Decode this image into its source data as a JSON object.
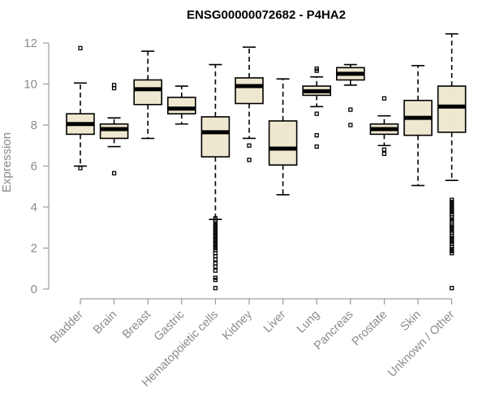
{
  "chart_data": {
    "type": "boxplot",
    "title": "ENSG00000072682 - P4HA2",
    "ylabel": "Expression",
    "xlabel": "",
    "ylim": [
      0,
      12.5
    ],
    "yticks": [
      0,
      2,
      4,
      6,
      8,
      10,
      12
    ],
    "categories": [
      "Bladder",
      "Brain",
      "Breast",
      "Gastric",
      "Hematopoietic cells",
      "Kidney",
      "Liver",
      "Lung",
      "Pancreas",
      "Prostate",
      "Skin",
      "Unknown / Other"
    ],
    "colors": {
      "box_fill": "#efe8d0",
      "stroke": "#000000",
      "axis": "#8a8a8a"
    },
    "boxes": [
      {
        "name": "Bladder",
        "min": 6.0,
        "q1": 7.55,
        "median": 8.05,
        "q3": 8.55,
        "max": 10.05,
        "outliers": [
          11.75,
          5.9
        ]
      },
      {
        "name": "Brain",
        "min": 6.95,
        "q1": 7.35,
        "median": 7.8,
        "q3": 8.05,
        "max": 8.35,
        "outliers": [
          9.95,
          9.8,
          5.65
        ]
      },
      {
        "name": "Breast",
        "min": 7.35,
        "q1": 9.0,
        "median": 9.75,
        "q3": 10.2,
        "max": 11.6,
        "outliers": []
      },
      {
        "name": "Gastric",
        "min": 8.05,
        "q1": 8.55,
        "median": 8.8,
        "q3": 9.35,
        "max": 9.9,
        "outliers": []
      },
      {
        "name": "Hematopoietic cells",
        "min": 3.4,
        "q1": 6.45,
        "median": 7.65,
        "q3": 8.4,
        "max": 10.95,
        "outliers": [
          3.45,
          3.3,
          3.2,
          3.1,
          3.0,
          2.9,
          2.8,
          2.7,
          2.6,
          2.5,
          2.4,
          2.3,
          2.2,
          2.1,
          2.0,
          1.9,
          1.75,
          1.6,
          1.45,
          1.25,
          1.1,
          0.9,
          0.55,
          0.45,
          0.05
        ]
      },
      {
        "name": "Kidney",
        "min": 7.35,
        "q1": 9.05,
        "median": 9.9,
        "q3": 10.3,
        "max": 11.8,
        "outliers": [
          7.0,
          6.3
        ]
      },
      {
        "name": "Liver",
        "min": 4.6,
        "q1": 6.05,
        "median": 6.85,
        "q3": 8.2,
        "max": 10.25,
        "outliers": []
      },
      {
        "name": "Lung",
        "min": 8.9,
        "q1": 9.45,
        "median": 9.65,
        "q3": 9.9,
        "max": 10.35,
        "outliers": [
          10.75,
          10.65,
          8.55,
          7.5,
          6.95
        ]
      },
      {
        "name": "Pancreas",
        "min": 9.95,
        "q1": 10.2,
        "median": 10.5,
        "q3": 10.8,
        "max": 10.95,
        "outliers": [
          8.75,
          8.0
        ]
      },
      {
        "name": "Prostate",
        "min": 7.0,
        "q1": 7.55,
        "median": 7.8,
        "q3": 8.05,
        "max": 8.45,
        "outliers": [
          9.3,
          6.8,
          6.6
        ]
      },
      {
        "name": "Skin",
        "min": 5.05,
        "q1": 7.5,
        "median": 8.35,
        "q3": 9.2,
        "max": 10.9,
        "outliers": []
      },
      {
        "name": "Unknown / Other",
        "min": 5.3,
        "q1": 7.65,
        "median": 8.9,
        "q3": 9.9,
        "max": 12.45,
        "outliers": [
          4.35,
          4.25,
          4.15,
          4.05,
          3.95,
          3.85,
          3.75,
          3.65,
          3.5,
          3.4,
          3.3,
          3.15,
          3.05,
          2.95,
          2.85,
          2.75,
          2.6,
          2.5,
          2.4,
          2.3,
          2.2,
          2.05,
          1.95,
          1.85,
          1.75,
          0.05
        ]
      }
    ]
  }
}
